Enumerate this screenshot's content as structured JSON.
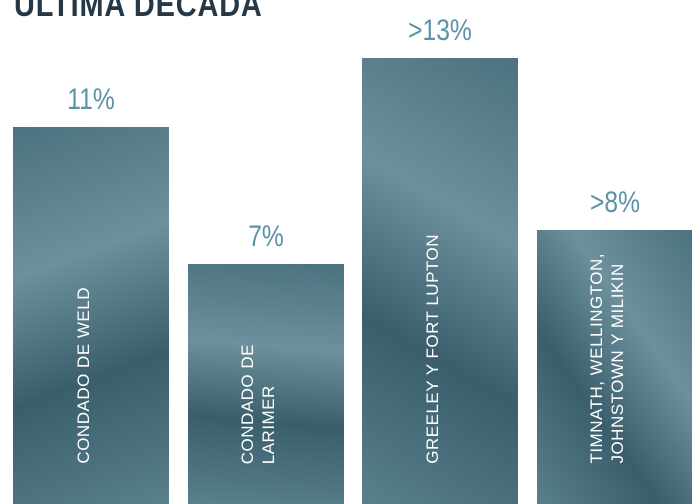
{
  "chart_data": {
    "type": "bar",
    "title": "ÚLTIMA DÉCADA",
    "categories": [
      "CONDADO DE WELD",
      "CONDADO DE\nLARIMER",
      "GREELEY Y FORT LUPTON",
      "TIMNATH, WELLINGTON,\nJOHNSTOWN Y MILIKIN"
    ],
    "values": [
      11,
      7,
      13,
      8
    ],
    "value_labels": [
      "11%",
      "7%",
      ">13%",
      ">8%"
    ],
    "color": "#4b7280",
    "ylim": [
      0,
      14
    ]
  }
}
